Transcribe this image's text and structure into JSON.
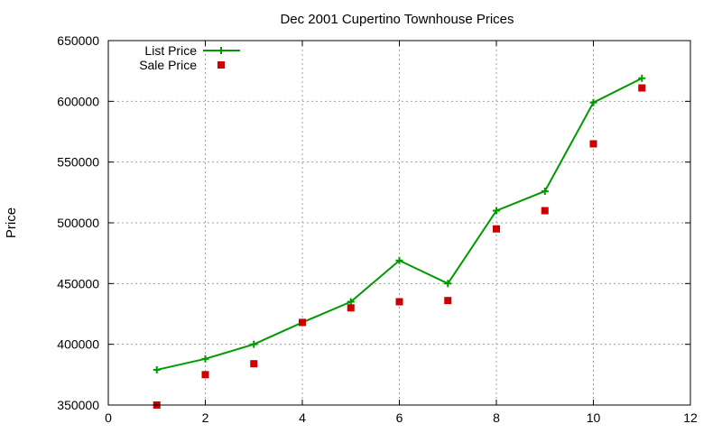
{
  "chart_data": {
    "type": "line",
    "title": "Dec 2001 Cupertino Townhouse Prices",
    "xlabel": "",
    "ylabel": "Price",
    "xlim": [
      0,
      12
    ],
    "ylim": [
      350000,
      650000
    ],
    "xticks": [
      0,
      2,
      4,
      6,
      8,
      10,
      12
    ],
    "yticks": [
      350000,
      400000,
      450000,
      500000,
      550000,
      600000,
      650000
    ],
    "grid": true,
    "legend_position": "top-left",
    "series": [
      {
        "name": "List Price",
        "style": "line+plus-markers",
        "color": "#009900",
        "x": [
          1,
          2,
          3,
          4,
          5,
          6,
          7,
          8,
          9,
          10,
          11
        ],
        "y": [
          379000,
          388000,
          400000,
          418000,
          435000,
          469000,
          450000,
          510000,
          526000,
          599000,
          619000
        ]
      },
      {
        "name": "Sale Price",
        "style": "square-points",
        "color": "#cc0000",
        "x": [
          1,
          2,
          3,
          4,
          5,
          6,
          7,
          8,
          9,
          10,
          11
        ],
        "y": [
          350000,
          375000,
          384000,
          418000,
          430000,
          435000,
          436000,
          495000,
          510000,
          565000,
          611000
        ]
      }
    ]
  }
}
